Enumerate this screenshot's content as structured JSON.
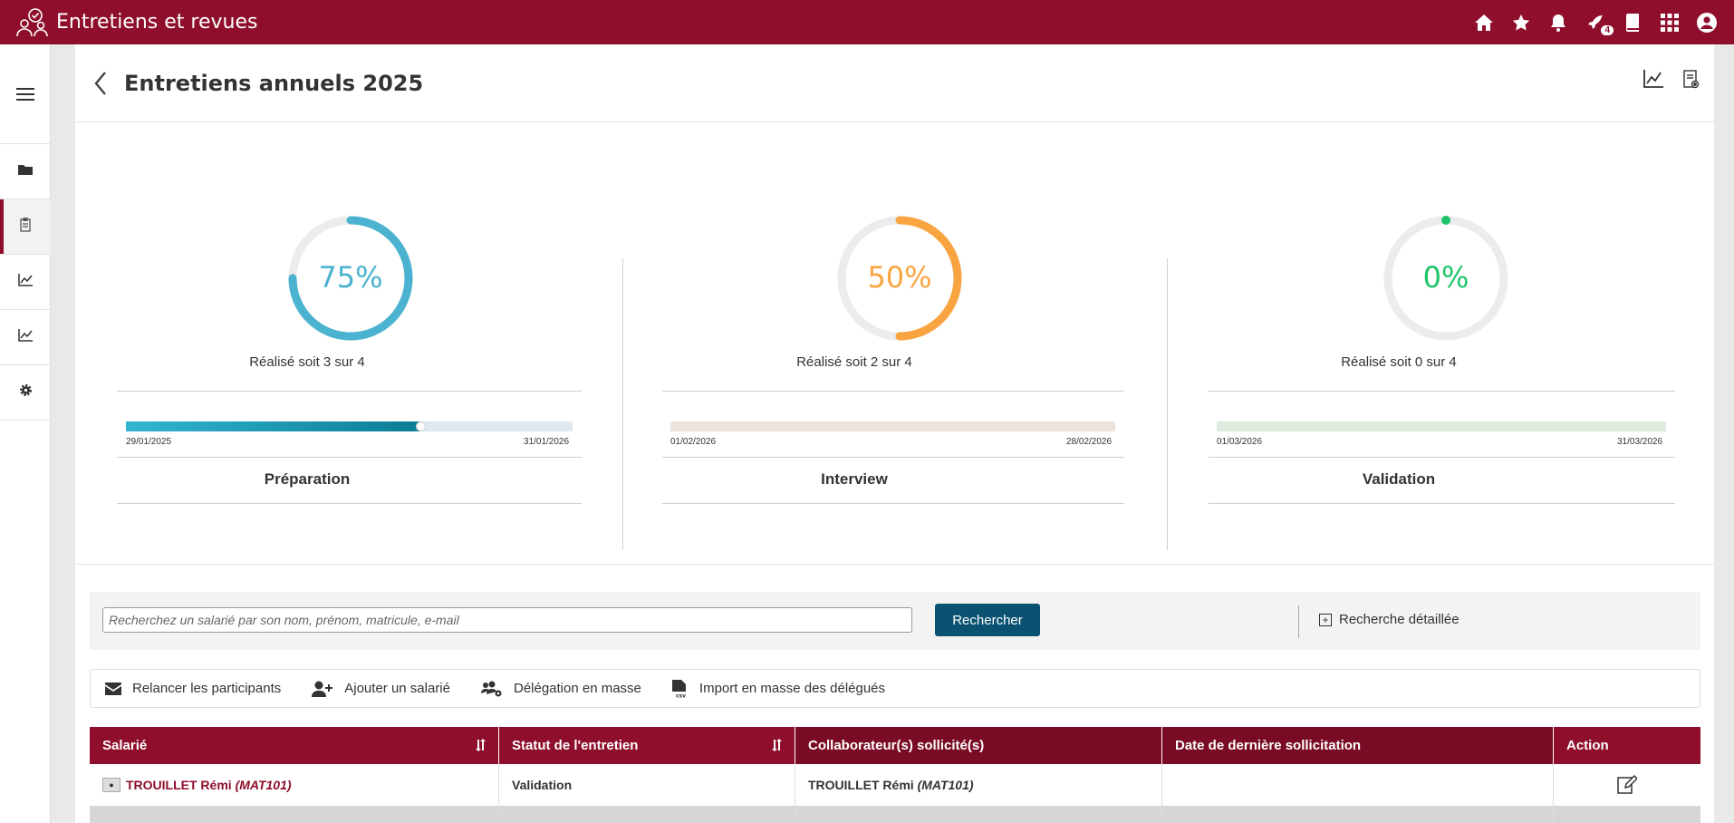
{
  "app": {
    "title": "Entretiens et revues",
    "notification_count": "4"
  },
  "topbar_icons": [
    "home-icon",
    "star-icon",
    "bell-icon",
    "rocket-icon",
    "book-icon",
    "apps-grid-icon",
    "user-account-icon"
  ],
  "sidebar": {
    "items": [
      "menu-icon",
      "folder-icon",
      "clipboard-icon",
      "chart-icon",
      "chart-icon",
      "gear-icon"
    ],
    "active_index": 2
  },
  "page": {
    "title": "Entretiens annuels 2025"
  },
  "phases": [
    {
      "name": "Préparation",
      "percent": "75%",
      "progress": 0.75,
      "realise": "Réalisé soit 3 sur 4",
      "start": "29/01/2025",
      "end": "31/01/2026",
      "color": "#4bb3cf",
      "timeline_progress": 0.66
    },
    {
      "name": "Interview",
      "percent": "50%",
      "progress": 0.5,
      "realise": "Réalisé soit 2 sur 4",
      "start": "01/02/2026",
      "end": "28/02/2026",
      "color": "#f8a541",
      "timeline_progress": 0
    },
    {
      "name": "Validation",
      "percent": "0%",
      "progress": 0,
      "realise": "Réalisé soit 0 sur 4",
      "start": "01/03/2026",
      "end": "31/03/2026",
      "color": "#1fc46a",
      "timeline_progress": 0
    }
  ],
  "search": {
    "placeholder": "Recherchez un salarié par son nom, prénom, matricule, e-mail",
    "button": "Rechercher",
    "advanced": "Recherche détaillée"
  },
  "actions": [
    {
      "label": "Relancer les participants",
      "icon": "envelope-icon"
    },
    {
      "label": "Ajouter un salarié",
      "icon": "add-user-icon"
    },
    {
      "label": "Délégation en masse",
      "icon": "users-gear-icon"
    },
    {
      "label": "Import en masse des délégués",
      "icon": "csv-file-icon"
    }
  ],
  "table": {
    "columns": [
      "Salarié",
      "Statut de l'entretien",
      "Collaborateur(s) sollicité(s)",
      "Date de dernière sollicitation",
      "Action"
    ],
    "rows": [
      {
        "name": "TROUILLET Rémi",
        "mat": "(MAT101)",
        "status": "Validation",
        "collab_name": "TROUILLET Rémi",
        "collab_mat": "(MAT101)",
        "date": ""
      }
    ]
  },
  "colors": {
    "brand": "#8e0e2c",
    "button": "#0b5272"
  }
}
